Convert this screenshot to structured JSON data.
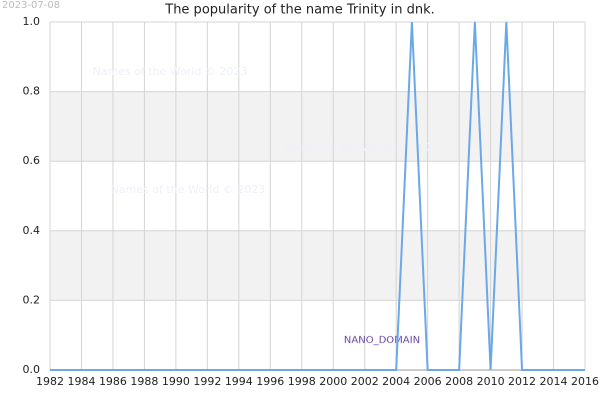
{
  "date_stamp": "2023-07-08",
  "watermarks": [
    "Names of the World © 2023",
    "Names of the World © 2023",
    "Names of the World © 2023"
  ],
  "badge": "NANO_DOMAIN",
  "chart_data": {
    "type": "line",
    "title": "The popularity of the name Trinity in dnk.",
    "x": [
      1982,
      1983,
      1984,
      1985,
      1986,
      1987,
      1988,
      1989,
      1990,
      1991,
      1992,
      1993,
      1994,
      1995,
      1996,
      1997,
      1998,
      1999,
      2000,
      2001,
      2002,
      2003,
      2004,
      2005,
      2006,
      2007,
      2008,
      2009,
      2010,
      2011,
      2012,
      2013,
      2014,
      2015,
      2016
    ],
    "series": [
      {
        "color": "#6aa8e8",
        "values": [
          0,
          0,
          0,
          0,
          0,
          0,
          0,
          0,
          0,
          0,
          0,
          0,
          0,
          0,
          0,
          0,
          0,
          0,
          0,
          0,
          0,
          0,
          0,
          1,
          0,
          0,
          0,
          1,
          0,
          1,
          0,
          0,
          0,
          0,
          0
        ]
      }
    ],
    "xlim": [
      1982,
      2016
    ],
    "xticks": [
      1982,
      1984,
      1986,
      1988,
      1990,
      1992,
      1994,
      1996,
      1998,
      2000,
      2002,
      2004,
      2006,
      2008,
      2010,
      2012,
      2014,
      2016
    ],
    "ylim": [
      0,
      1
    ],
    "yticks": [
      {
        "value": 0,
        "label": "0.0"
      },
      0.2,
      0.4,
      0.6,
      0.8,
      {
        "value": 1,
        "label": "1.0"
      }
    ],
    "grid": true,
    "bands": true
  }
}
